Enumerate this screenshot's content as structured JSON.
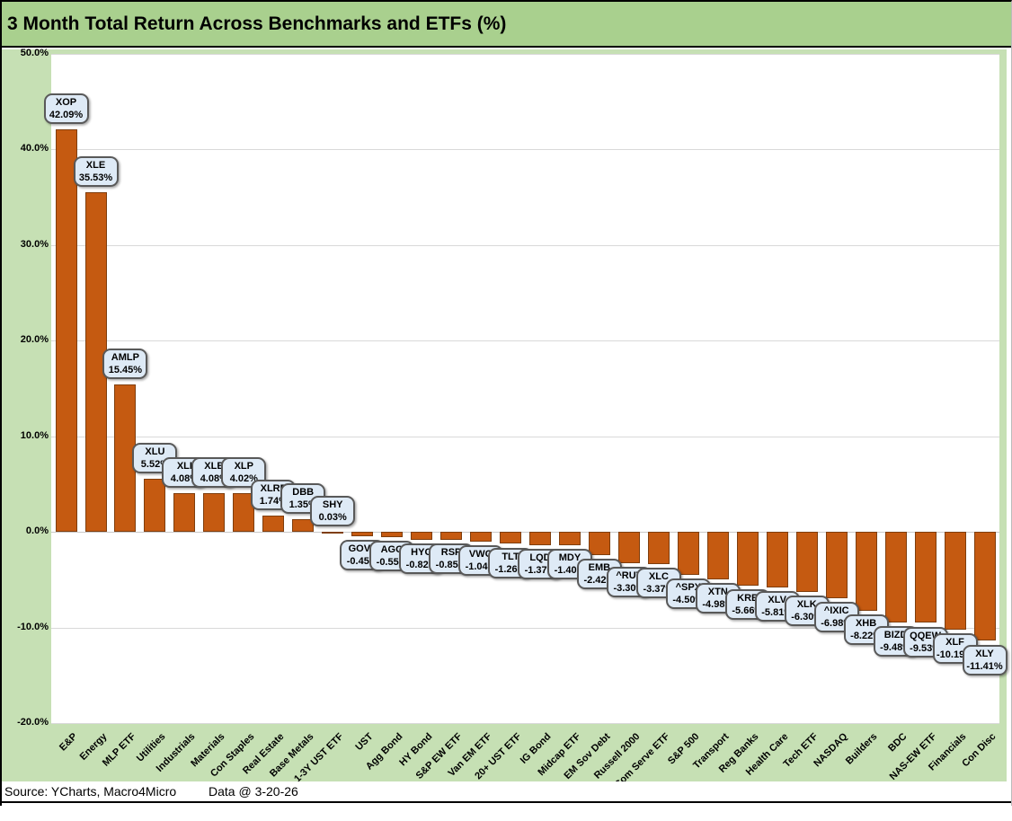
{
  "chart_data": {
    "type": "bar",
    "title": "3 Month Total Return Across Benchmarks and ETFs (%)",
    "categories": [
      "E&P",
      "Energy",
      "MLP ETF",
      "Utilities",
      "Industrials",
      "Materials",
      "Con Staples",
      "Real Estate",
      "Base Metals",
      "1-3Y UST ETF",
      "UST",
      "Agg Bond",
      "HY Bond",
      "S&P EW ETF",
      "Van EM ETF",
      "20+ UST ETF",
      "IG Bond",
      "Midcap ETF",
      "EM Sov Debt",
      "Russell 2000",
      "Com Serve ETF",
      "S&P 500",
      "Transport",
      "Reg Banks",
      "Health Care",
      "Tech ETF",
      "NASDAQ",
      "Builders",
      "BDC",
      "NAS-EW ETF",
      "Financials",
      "Con Disc"
    ],
    "tickers": [
      "XOP",
      "XLE",
      "AMLP",
      "XLU",
      "XLI",
      "XLB",
      "XLP",
      "XLRE",
      "DBB",
      "SHY",
      "GOVT",
      "AGG",
      "HYG",
      "RSP",
      "VWO",
      "TLT",
      "LQD",
      "MDY",
      "EMB",
      "^RUT",
      "XLC",
      "^SPX",
      "XTN",
      "KRE",
      "XLV",
      "XLK",
      "^IXIC",
      "XHB",
      "BIZD",
      "QQEW",
      "XLF",
      "XLY"
    ],
    "values": [
      42.09,
      35.53,
      15.45,
      5.52,
      4.08,
      4.08,
      4.02,
      1.74,
      1.35,
      0.03,
      -0.45,
      -0.55,
      -0.82,
      -0.85,
      -1.04,
      -1.26,
      -1.37,
      -1.4,
      -2.42,
      -3.3,
      -3.37,
      -4.5,
      -4.98,
      -5.66,
      -5.81,
      -6.3,
      -6.98,
      -8.22,
      -9.48,
      -9.53,
      -10.19,
      -11.41
    ],
    "value_labels": [
      "42.09%",
      "35.53%",
      "15.45%",
      "5.52%",
      "4.08%",
      "4.08%",
      "4.02%",
      "1.74%",
      "1.35%",
      "0.03%",
      "-0.45%",
      "-0.55%",
      "-0.82%",
      "-0.85%",
      "-1.04%",
      "-1.26%",
      "-1.37%",
      "-1.40%",
      "-2.42%",
      "-3.30%",
      "-3.37%",
      "-4.50%",
      "-4.98%",
      "-5.66%",
      "-5.81%",
      "-6.30%",
      "-6.98%",
      "-8.22%",
      "-9.48%",
      "-9.53%",
      "-10.19%",
      "-11.41%"
    ],
    "ylim": [
      -20,
      50
    ],
    "ytick_labels": [
      "50.0%",
      "40.0%",
      "30.0%",
      "20.0%",
      "10.0%",
      "0.0%",
      "-10.0%",
      "-20.0%"
    ],
    "grid": true,
    "legend": "none",
    "xlabel": "",
    "ylabel": ""
  },
  "footer": {
    "source": "Source: YCharts, Macro4Micro",
    "data_date": "Data @ 3-20-26"
  },
  "colors": {
    "bar_fill": "#C55A11",
    "bar_border": "#7F3E0D",
    "callout_bg": "#DEEAF6",
    "callout_border": "#595959",
    "title_bg": "#A9D08E",
    "margin_bg": "#C6E0B4",
    "grid": "#D9D9D9"
  }
}
